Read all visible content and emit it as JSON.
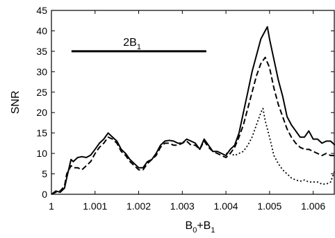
{
  "chart_data": {
    "type": "line",
    "title": "",
    "xlabel": "B",
    "xlabel_parts": [
      {
        "text": "B",
        "sub": false
      },
      {
        "text": "0",
        "sub": true
      },
      {
        "text": "+B",
        "sub": false
      },
      {
        "text": "1",
        "sub": true
      }
    ],
    "ylabel": "SNR",
    "xlim": [
      1.0,
      1.0065
    ],
    "ylim": [
      0,
      45
    ],
    "x_ticks": [
      1,
      1.001,
      1.002,
      1.003,
      1.004,
      1.005,
      1.006
    ],
    "x_tick_labels": [
      "1",
      "1.001",
      "1.002",
      "1.003",
      "1.004",
      "1.005",
      "1.006"
    ],
    "y_ticks": [
      0,
      5,
      10,
      15,
      20,
      25,
      30,
      35,
      40,
      45
    ],
    "y_tick_labels": [
      "0",
      "5",
      "10",
      "15",
      "20",
      "25",
      "30",
      "35",
      "40",
      "45"
    ],
    "grid": false,
    "annotation": {
      "label_main": "2B",
      "label_sub": "1",
      "bar_x": [
        1.00046,
        1.00355
      ],
      "bar_y": 35
    },
    "series": [
      {
        "style": "solid",
        "points": [
          [
            1.0,
            0
          ],
          [
            1.0001,
            0.8
          ],
          [
            1.0002,
            0.5
          ],
          [
            1.0003,
            1.5
          ],
          [
            1.00035,
            4
          ],
          [
            1.00045,
            8.5
          ],
          [
            1.0005,
            8
          ],
          [
            1.0006,
            9
          ],
          [
            1.0007,
            9.2
          ],
          [
            1.0008,
            9
          ],
          [
            1.0009,
            9.6
          ],
          [
            1.001,
            11
          ],
          [
            1.0011,
            12.5
          ],
          [
            1.0012,
            13.5
          ],
          [
            1.0013,
            15
          ],
          [
            1.0014,
            14
          ],
          [
            1.0015,
            13
          ],
          [
            1.0016,
            11
          ],
          [
            1.0017,
            10
          ],
          [
            1.0018,
            8.5
          ],
          [
            1.0019,
            7.5
          ],
          [
            1.002,
            6.5
          ],
          [
            1.0021,
            6.5
          ],
          [
            1.0022,
            8
          ],
          [
            1.0023,
            8.5
          ],
          [
            1.0024,
            10
          ],
          [
            1.0025,
            12
          ],
          [
            1.0026,
            13
          ],
          [
            1.0027,
            13.2
          ],
          [
            1.0028,
            13
          ],
          [
            1.0029,
            12.5
          ],
          [
            1.003,
            12.5
          ],
          [
            1.0031,
            13.5
          ],
          [
            1.0032,
            13
          ],
          [
            1.0033,
            12.5
          ],
          [
            1.0034,
            11
          ],
          [
            1.0035,
            13.5
          ],
          [
            1.0036,
            12
          ],
          [
            1.0037,
            10.5
          ],
          [
            1.0038,
            10.5
          ],
          [
            1.0039,
            10
          ],
          [
            1.004,
            9.5
          ],
          [
            1.0041,
            11
          ],
          [
            1.0042,
            12
          ],
          [
            1.0043,
            15
          ],
          [
            1.0044,
            20
          ],
          [
            1.0045,
            25
          ],
          [
            1.0046,
            30
          ],
          [
            1.0047,
            34
          ],
          [
            1.0048,
            38
          ],
          [
            1.0049,
            40
          ],
          [
            1.00495,
            41
          ],
          [
            1.005,
            38
          ],
          [
            1.0051,
            33
          ],
          [
            1.0052,
            28
          ],
          [
            1.0053,
            24
          ],
          [
            1.0054,
            19
          ],
          [
            1.0055,
            17
          ],
          [
            1.0056,
            15.5
          ],
          [
            1.0057,
            14
          ],
          [
            1.0058,
            14
          ],
          [
            1.0059,
            15.5
          ],
          [
            1.006,
            13.5
          ],
          [
            1.0061,
            13.5
          ],
          [
            1.0062,
            12.5
          ],
          [
            1.0063,
            13
          ],
          [
            1.0064,
            13
          ],
          [
            1.0065,
            12
          ]
        ]
      },
      {
        "style": "dashed",
        "points": [
          [
            1.0,
            0
          ],
          [
            1.0001,
            0.5
          ],
          [
            1.0002,
            0.8
          ],
          [
            1.0003,
            2
          ],
          [
            1.00035,
            5
          ],
          [
            1.00045,
            7
          ],
          [
            1.0005,
            6.5
          ],
          [
            1.0006,
            6.5
          ],
          [
            1.0007,
            6
          ],
          [
            1.0008,
            7
          ],
          [
            1.0009,
            8
          ],
          [
            1.001,
            10
          ],
          [
            1.0011,
            11.5
          ],
          [
            1.0012,
            12.5
          ],
          [
            1.0013,
            14
          ],
          [
            1.0014,
            13.5
          ],
          [
            1.0015,
            12.5
          ],
          [
            1.0016,
            10.5
          ],
          [
            1.0017,
            9.5
          ],
          [
            1.0018,
            8
          ],
          [
            1.0019,
            7
          ],
          [
            1.002,
            6
          ],
          [
            1.0021,
            6
          ],
          [
            1.0022,
            7.5
          ],
          [
            1.0023,
            8.5
          ],
          [
            1.0024,
            9.5
          ],
          [
            1.0025,
            11.5
          ],
          [
            1.0026,
            12.5
          ],
          [
            1.0027,
            12.5
          ],
          [
            1.0028,
            12
          ],
          [
            1.0029,
            12
          ],
          [
            1.003,
            12.5
          ],
          [
            1.0031,
            13
          ],
          [
            1.0032,
            12
          ],
          [
            1.0033,
            12
          ],
          [
            1.0034,
            11
          ],
          [
            1.0035,
            13
          ],
          [
            1.0036,
            11.5
          ],
          [
            1.0037,
            10.5
          ],
          [
            1.0038,
            10
          ],
          [
            1.0039,
            9.5
          ],
          [
            1.004,
            9
          ],
          [
            1.0041,
            10
          ],
          [
            1.0042,
            11.5
          ],
          [
            1.0043,
            14
          ],
          [
            1.0044,
            17
          ],
          [
            1.0045,
            21
          ],
          [
            1.0046,
            25
          ],
          [
            1.0047,
            29
          ],
          [
            1.0048,
            32
          ],
          [
            1.0049,
            33.5
          ],
          [
            1.005,
            31
          ],
          [
            1.0051,
            26
          ],
          [
            1.0052,
            22
          ],
          [
            1.0053,
            19
          ],
          [
            1.0054,
            16
          ],
          [
            1.0055,
            14
          ],
          [
            1.0056,
            12.5
          ],
          [
            1.0057,
            11.5
          ],
          [
            1.0058,
            11
          ],
          [
            1.0059,
            11
          ],
          [
            1.006,
            10.5
          ],
          [
            1.0061,
            10
          ],
          [
            1.0062,
            9.5
          ],
          [
            1.0063,
            10
          ],
          [
            1.0064,
            9.5
          ],
          [
            1.0065,
            9.5
          ]
        ]
      },
      {
        "style": "dotted",
        "points": [
          [
            1.004,
            10
          ],
          [
            1.0041,
            10
          ],
          [
            1.0042,
            9.5
          ],
          [
            1.0043,
            10
          ],
          [
            1.0044,
            10.5
          ],
          [
            1.0045,
            12
          ],
          [
            1.0046,
            14
          ],
          [
            1.0047,
            17
          ],
          [
            1.0048,
            20
          ],
          [
            1.00485,
            21
          ],
          [
            1.0049,
            18
          ],
          [
            1.005,
            14
          ],
          [
            1.0051,
            9.5
          ],
          [
            1.0052,
            7.5
          ],
          [
            1.0053,
            6
          ],
          [
            1.0054,
            5
          ],
          [
            1.0055,
            4
          ],
          [
            1.0056,
            3.5
          ],
          [
            1.0057,
            3.2
          ],
          [
            1.0058,
            3.5
          ],
          [
            1.0059,
            3
          ],
          [
            1.006,
            3
          ],
          [
            1.0061,
            3
          ],
          [
            1.0062,
            2.5
          ],
          [
            1.0063,
            2.5
          ],
          [
            1.0064,
            3
          ],
          [
            1.0065,
            6
          ]
        ]
      }
    ]
  }
}
